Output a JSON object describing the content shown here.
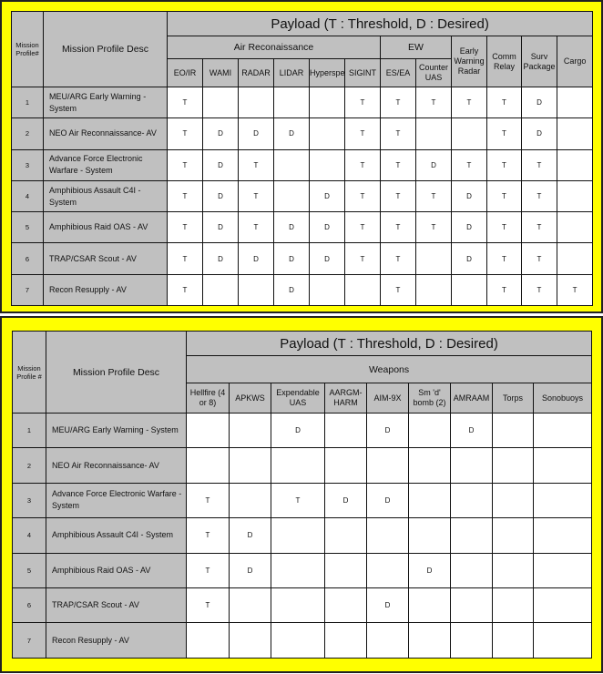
{
  "tables": [
    {
      "title": "Payload (T : Threshold, D : Desired)",
      "mission_header": "Mission Profile#",
      "desc_header": "Mission Profile Desc",
      "groups": [
        {
          "label": "Air Reconaissance",
          "span": 6
        },
        {
          "label": "EW",
          "span": 2
        }
      ],
      "columns": [
        "EO/IR",
        "WAMI",
        "RADAR",
        "LIDAR",
        "Hyperspectral",
        "SIGINT",
        "ES/EA",
        "Counter UAS",
        "Early Warning Radar",
        "Comm Relay",
        "Surv Package",
        "Cargo"
      ],
      "rows": [
        {
          "num": "1",
          "desc": "MEU/ARG Early Warning - System",
          "cells": [
            "T",
            "",
            "",
            "",
            "",
            "T",
            "T",
            "T",
            "T",
            "T",
            "D",
            ""
          ]
        },
        {
          "num": "2",
          "desc": "NEO Air Reconnaissance- AV",
          "cells": [
            "T",
            "D",
            "D",
            "D",
            "",
            "T",
            "T",
            "",
            "",
            "T",
            "D",
            ""
          ]
        },
        {
          "num": "3",
          "desc": "Advance Force Electronic Warfare - System",
          "cells": [
            "T",
            "D",
            "T",
            "",
            "",
            "T",
            "T",
            "D",
            "T",
            "T",
            "T",
            ""
          ]
        },
        {
          "num": "4",
          "desc": "Amphibious Assault C4I - System",
          "cells": [
            "T",
            "D",
            "T",
            "",
            "D",
            "T",
            "T",
            "T",
            "D",
            "T",
            "T",
            ""
          ]
        },
        {
          "num": "5",
          "desc": "Amphibious Raid OAS - AV",
          "cells": [
            "T",
            "D",
            "T",
            "D",
            "D",
            "T",
            "T",
            "T",
            "D",
            "T",
            "T",
            ""
          ]
        },
        {
          "num": "6",
          "desc": "TRAP/CSAR Scout - AV",
          "cells": [
            "T",
            "D",
            "D",
            "D",
            "D",
            "T",
            "T",
            "",
            "D",
            "T",
            "T",
            ""
          ]
        },
        {
          "num": "7",
          "desc": "Recon Resupply - AV",
          "cells": [
            "T",
            "",
            "",
            "D",
            "",
            "",
            "T",
            "",
            "",
            "T",
            "T",
            "T"
          ]
        }
      ]
    },
    {
      "title": "Payload (T : Threshold, D : Desired)",
      "mission_header": "Mission Profile #",
      "desc_header": "Mission Profile Desc",
      "groups": [
        {
          "label": "Weapons",
          "span": 9
        }
      ],
      "columns": [
        "Hellfire (4 or 8)",
        "APKWS",
        "Expendable UAS",
        "AARGM-HARM",
        "AIM-9X",
        "Sm 'd' bomb (2)",
        "AMRAAM",
        "Torps",
        "Sonobuoys"
      ],
      "rows": [
        {
          "num": "1",
          "desc": "MEU/ARG Early Warning - System",
          "cells": [
            "",
            "",
            "D",
            "",
            "D",
            "",
            "D",
            "",
            ""
          ]
        },
        {
          "num": "2",
          "desc": "NEO Air Reconnaissance- AV",
          "cells": [
            "",
            "",
            "",
            "",
            "",
            "",
            "",
            "",
            ""
          ]
        },
        {
          "num": "3",
          "desc": "Advance Force Electronic Warfare - System",
          "cells": [
            "T",
            "",
            "T",
            "D",
            "D",
            "",
            "",
            "",
            ""
          ]
        },
        {
          "num": "4",
          "desc": "Amphibious Assault C4I - System",
          "cells": [
            "T",
            "D",
            "",
            "",
            "",
            "",
            "",
            "",
            ""
          ]
        },
        {
          "num": "5",
          "desc": "Amphibious Raid OAS - AV",
          "cells": [
            "T",
            "D",
            "",
            "",
            "",
            "D",
            "",
            "",
            ""
          ]
        },
        {
          "num": "6",
          "desc": "TRAP/CSAR Scout - AV",
          "cells": [
            "T",
            "",
            "",
            "",
            "D",
            "",
            "",
            "",
            ""
          ]
        },
        {
          "num": "7",
          "desc": "Recon Resupply - AV",
          "cells": [
            "",
            "",
            "",
            "",
            "",
            "",
            "",
            "",
            ""
          ]
        }
      ]
    }
  ]
}
